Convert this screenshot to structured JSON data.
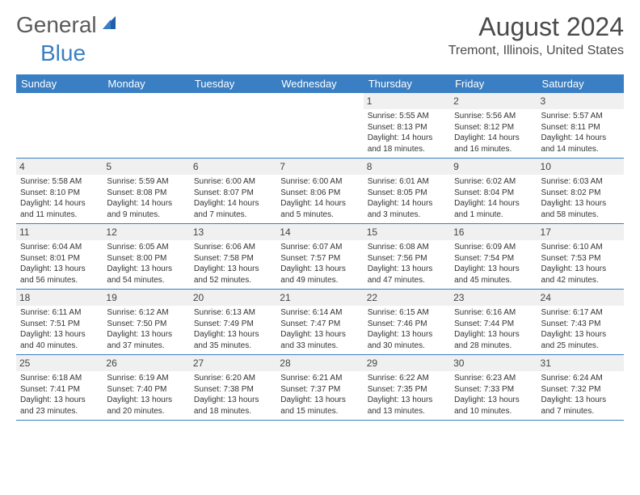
{
  "logo": {
    "text1": "General",
    "text2": "Blue"
  },
  "title": "August 2024",
  "location": "Tremont, Illinois, United States",
  "colors": {
    "header_bg": "#3a7fc4",
    "header_text": "#ffffff",
    "day_shade": "#f0f0f0",
    "border": "#3a7fc4",
    "text": "#333333",
    "logo_gray": "#5a5a5a",
    "logo_blue": "#3a7fc4"
  },
  "typography": {
    "title_fontsize": 32,
    "location_fontsize": 16,
    "header_fontsize": 13,
    "daynum_fontsize": 12,
    "cell_fontsize": 10
  },
  "day_headers": [
    "Sunday",
    "Monday",
    "Tuesday",
    "Wednesday",
    "Thursday",
    "Friday",
    "Saturday"
  ],
  "weeks": [
    [
      null,
      null,
      null,
      null,
      {
        "n": "1",
        "sr": "5:55 AM",
        "ss": "8:13 PM",
        "dl": "14 hours and 18 minutes."
      },
      {
        "n": "2",
        "sr": "5:56 AM",
        "ss": "8:12 PM",
        "dl": "14 hours and 16 minutes."
      },
      {
        "n": "3",
        "sr": "5:57 AM",
        "ss": "8:11 PM",
        "dl": "14 hours and 14 minutes."
      }
    ],
    [
      {
        "n": "4",
        "sr": "5:58 AM",
        "ss": "8:10 PM",
        "dl": "14 hours and 11 minutes."
      },
      {
        "n": "5",
        "sr": "5:59 AM",
        "ss": "8:08 PM",
        "dl": "14 hours and 9 minutes."
      },
      {
        "n": "6",
        "sr": "6:00 AM",
        "ss": "8:07 PM",
        "dl": "14 hours and 7 minutes."
      },
      {
        "n": "7",
        "sr": "6:00 AM",
        "ss": "8:06 PM",
        "dl": "14 hours and 5 minutes."
      },
      {
        "n": "8",
        "sr": "6:01 AM",
        "ss": "8:05 PM",
        "dl": "14 hours and 3 minutes."
      },
      {
        "n": "9",
        "sr": "6:02 AM",
        "ss": "8:04 PM",
        "dl": "14 hours and 1 minute."
      },
      {
        "n": "10",
        "sr": "6:03 AM",
        "ss": "8:02 PM",
        "dl": "13 hours and 58 minutes."
      }
    ],
    [
      {
        "n": "11",
        "sr": "6:04 AM",
        "ss": "8:01 PM",
        "dl": "13 hours and 56 minutes."
      },
      {
        "n": "12",
        "sr": "6:05 AM",
        "ss": "8:00 PM",
        "dl": "13 hours and 54 minutes."
      },
      {
        "n": "13",
        "sr": "6:06 AM",
        "ss": "7:58 PM",
        "dl": "13 hours and 52 minutes."
      },
      {
        "n": "14",
        "sr": "6:07 AM",
        "ss": "7:57 PM",
        "dl": "13 hours and 49 minutes."
      },
      {
        "n": "15",
        "sr": "6:08 AM",
        "ss": "7:56 PM",
        "dl": "13 hours and 47 minutes."
      },
      {
        "n": "16",
        "sr": "6:09 AM",
        "ss": "7:54 PM",
        "dl": "13 hours and 45 minutes."
      },
      {
        "n": "17",
        "sr": "6:10 AM",
        "ss": "7:53 PM",
        "dl": "13 hours and 42 minutes."
      }
    ],
    [
      {
        "n": "18",
        "sr": "6:11 AM",
        "ss": "7:51 PM",
        "dl": "13 hours and 40 minutes."
      },
      {
        "n": "19",
        "sr": "6:12 AM",
        "ss": "7:50 PM",
        "dl": "13 hours and 37 minutes."
      },
      {
        "n": "20",
        "sr": "6:13 AM",
        "ss": "7:49 PM",
        "dl": "13 hours and 35 minutes."
      },
      {
        "n": "21",
        "sr": "6:14 AM",
        "ss": "7:47 PM",
        "dl": "13 hours and 33 minutes."
      },
      {
        "n": "22",
        "sr": "6:15 AM",
        "ss": "7:46 PM",
        "dl": "13 hours and 30 minutes."
      },
      {
        "n": "23",
        "sr": "6:16 AM",
        "ss": "7:44 PM",
        "dl": "13 hours and 28 minutes."
      },
      {
        "n": "24",
        "sr": "6:17 AM",
        "ss": "7:43 PM",
        "dl": "13 hours and 25 minutes."
      }
    ],
    [
      {
        "n": "25",
        "sr": "6:18 AM",
        "ss": "7:41 PM",
        "dl": "13 hours and 23 minutes."
      },
      {
        "n": "26",
        "sr": "6:19 AM",
        "ss": "7:40 PM",
        "dl": "13 hours and 20 minutes."
      },
      {
        "n": "27",
        "sr": "6:20 AM",
        "ss": "7:38 PM",
        "dl": "13 hours and 18 minutes."
      },
      {
        "n": "28",
        "sr": "6:21 AM",
        "ss": "7:37 PM",
        "dl": "13 hours and 15 minutes."
      },
      {
        "n": "29",
        "sr": "6:22 AM",
        "ss": "7:35 PM",
        "dl": "13 hours and 13 minutes."
      },
      {
        "n": "30",
        "sr": "6:23 AM",
        "ss": "7:33 PM",
        "dl": "13 hours and 10 minutes."
      },
      {
        "n": "31",
        "sr": "6:24 AM",
        "ss": "7:32 PM",
        "dl": "13 hours and 7 minutes."
      }
    ]
  ],
  "labels": {
    "sunrise": "Sunrise:",
    "sunset": "Sunset:",
    "daylight": "Daylight:"
  }
}
